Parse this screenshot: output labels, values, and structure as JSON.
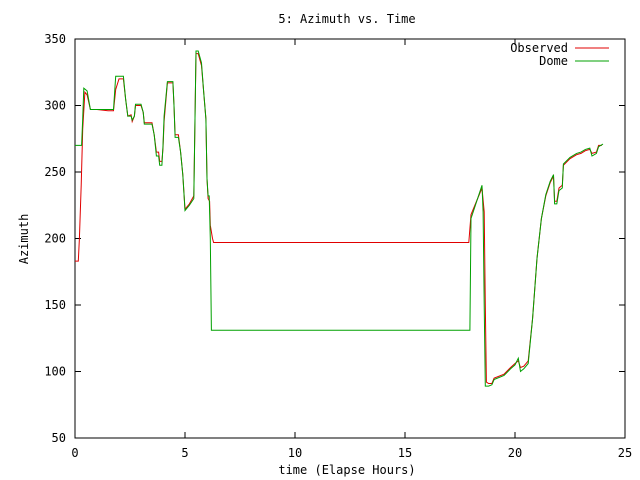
{
  "chart_data": {
    "type": "line",
    "title": "5: Azimuth vs. Time",
    "xlabel": "time (Elapse Hours)",
    "ylabel": "Azimuth",
    "xlim": [
      0,
      25
    ],
    "ylim": [
      50,
      350
    ],
    "xticks": [
      0,
      5,
      10,
      15,
      20,
      25
    ],
    "yticks": [
      50,
      100,
      150,
      200,
      250,
      300,
      350
    ],
    "grid": false,
    "legend_position": "top-right",
    "series": [
      {
        "name": "Observed",
        "color": "#e00000",
        "points": [
          [
            0,
            183
          ],
          [
            0.15,
            183
          ],
          [
            0.2,
            200
          ],
          [
            0.28,
            240
          ],
          [
            0.35,
            282
          ],
          [
            0.45,
            310
          ],
          [
            0.55,
            308
          ],
          [
            0.7,
            297
          ],
          [
            1.0,
            297
          ],
          [
            1.5,
            296
          ],
          [
            1.65,
            296
          ],
          [
            1.75,
            296
          ],
          [
            1.85,
            312
          ],
          [
            2.0,
            320
          ],
          [
            2.2,
            320
          ],
          [
            2.3,
            305
          ],
          [
            2.4,
            292
          ],
          [
            2.55,
            293
          ],
          [
            2.6,
            288
          ],
          [
            2.7,
            292
          ],
          [
            2.75,
            300
          ],
          [
            3.0,
            300
          ],
          [
            3.1,
            295
          ],
          [
            3.15,
            287
          ],
          [
            3.5,
            287
          ],
          [
            3.6,
            278
          ],
          [
            3.7,
            265
          ],
          [
            3.8,
            265
          ],
          [
            3.85,
            258
          ],
          [
            3.95,
            258
          ],
          [
            4.0,
            268
          ],
          [
            4.05,
            288
          ],
          [
            4.2,
            317
          ],
          [
            4.45,
            317
          ],
          [
            4.5,
            300
          ],
          [
            4.55,
            278
          ],
          [
            4.7,
            278
          ],
          [
            4.8,
            265
          ],
          [
            4.9,
            248
          ],
          [
            5.0,
            222
          ],
          [
            5.2,
            226
          ],
          [
            5.4,
            232
          ],
          [
            5.5,
            339
          ],
          [
            5.6,
            339
          ],
          [
            5.75,
            330
          ],
          [
            5.85,
            310
          ],
          [
            5.95,
            290
          ],
          [
            6.0,
            245
          ],
          [
            6.05,
            230
          ],
          [
            6.12,
            228
          ],
          [
            6.15,
            210
          ],
          [
            6.25,
            200
          ],
          [
            6.3,
            197
          ],
          [
            17.9,
            197
          ],
          [
            18.0,
            218
          ],
          [
            18.05,
            220
          ],
          [
            18.5,
            238
          ],
          [
            18.6,
            220
          ],
          [
            18.65,
            150
          ],
          [
            18.7,
            92
          ],
          [
            18.8,
            91
          ],
          [
            18.95,
            91
          ],
          [
            19.05,
            95
          ],
          [
            19.5,
            98
          ],
          [
            19.8,
            103
          ],
          [
            20.0,
            106
          ],
          [
            20.15,
            108
          ],
          [
            20.25,
            103
          ],
          [
            20.4,
            104
          ],
          [
            20.6,
            108
          ],
          [
            20.8,
            140
          ],
          [
            21.0,
            185
          ],
          [
            21.2,
            215
          ],
          [
            21.4,
            232
          ],
          [
            21.6,
            242
          ],
          [
            21.75,
            247
          ],
          [
            21.8,
            228
          ],
          [
            21.9,
            228
          ],
          [
            22.0,
            238
          ],
          [
            22.15,
            240
          ],
          [
            22.2,
            255
          ],
          [
            22.5,
            260
          ],
          [
            22.8,
            263
          ],
          [
            23.0,
            264
          ],
          [
            23.2,
            266
          ],
          [
            23.4,
            267
          ],
          [
            23.5,
            264
          ],
          [
            23.7,
            265
          ],
          [
            23.8,
            270
          ],
          [
            23.95,
            270
          ]
        ]
      },
      {
        "name": "Dome",
        "color": "#00a000",
        "points": [
          [
            0,
            270
          ],
          [
            0.3,
            270
          ],
          [
            0.35,
            290
          ],
          [
            0.4,
            313
          ],
          [
            0.55,
            311
          ],
          [
            0.7,
            297
          ],
          [
            1.0,
            297
          ],
          [
            1.5,
            297
          ],
          [
            1.65,
            297
          ],
          [
            1.75,
            297
          ],
          [
            1.85,
            322
          ],
          [
            2.0,
            322
          ],
          [
            2.2,
            322
          ],
          [
            2.3,
            305
          ],
          [
            2.4,
            292
          ],
          [
            2.55,
            292
          ],
          [
            2.6,
            289
          ],
          [
            2.7,
            292
          ],
          [
            2.75,
            301
          ],
          [
            3.0,
            301
          ],
          [
            3.1,
            295
          ],
          [
            3.15,
            286
          ],
          [
            3.5,
            286
          ],
          [
            3.6,
            278
          ],
          [
            3.7,
            262
          ],
          [
            3.8,
            262
          ],
          [
            3.85,
            255
          ],
          [
            3.95,
            255
          ],
          [
            4.0,
            270
          ],
          [
            4.05,
            292
          ],
          [
            4.2,
            318
          ],
          [
            4.45,
            318
          ],
          [
            4.5,
            300
          ],
          [
            4.55,
            276
          ],
          [
            4.7,
            276
          ],
          [
            4.8,
            265
          ],
          [
            4.9,
            248
          ],
          [
            5.0,
            221
          ],
          [
            5.2,
            225
          ],
          [
            5.4,
            230
          ],
          [
            5.5,
            341
          ],
          [
            5.6,
            341
          ],
          [
            5.75,
            332
          ],
          [
            5.85,
            310
          ],
          [
            5.95,
            290
          ],
          [
            6.0,
            245
          ],
          [
            6.05,
            232
          ],
          [
            6.1,
            232
          ],
          [
            6.15,
            200
          ],
          [
            6.2,
            131
          ],
          [
            17.95,
            131
          ],
          [
            18.0,
            215
          ],
          [
            18.5,
            240
          ],
          [
            18.55,
            220
          ],
          [
            18.6,
            150
          ],
          [
            18.65,
            89
          ],
          [
            18.8,
            89
          ],
          [
            18.95,
            90
          ],
          [
            19.05,
            94
          ],
          [
            19.5,
            97
          ],
          [
            19.8,
            102
          ],
          [
            20.0,
            105
          ],
          [
            20.15,
            110
          ],
          [
            20.25,
            100
          ],
          [
            20.4,
            102
          ],
          [
            20.6,
            106
          ],
          [
            20.8,
            140
          ],
          [
            21.0,
            185
          ],
          [
            21.2,
            215
          ],
          [
            21.4,
            233
          ],
          [
            21.6,
            243
          ],
          [
            21.75,
            248
          ],
          [
            21.8,
            226
          ],
          [
            21.9,
            226
          ],
          [
            22.0,
            236
          ],
          [
            22.15,
            238
          ],
          [
            22.2,
            256
          ],
          [
            22.5,
            261
          ],
          [
            22.8,
            264
          ],
          [
            23.0,
            265
          ],
          [
            23.2,
            267
          ],
          [
            23.4,
            268
          ],
          [
            23.5,
            262
          ],
          [
            23.7,
            264
          ],
          [
            23.8,
            269
          ],
          [
            24.0,
            271
          ]
        ]
      }
    ]
  }
}
